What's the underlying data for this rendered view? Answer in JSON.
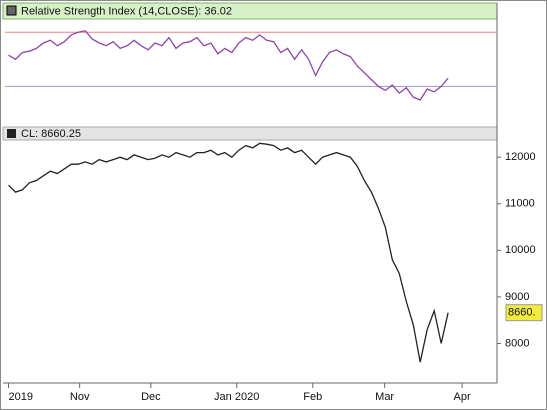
{
  "chart_data": [
    {
      "type": "line",
      "title": "Relative Strength Index (14,CLOSE): 36.02",
      "color": "#8e44ad",
      "values": [
        53,
        50,
        55,
        56,
        58,
        62,
        64,
        60,
        63,
        68,
        70,
        71,
        65,
        62,
        60,
        63,
        58,
        60,
        64,
        60,
        57,
        62,
        60,
        66,
        58,
        62,
        63,
        66,
        60,
        62,
        54,
        58,
        55,
        62,
        66,
        64,
        68,
        64,
        63,
        55,
        58,
        50,
        57,
        50,
        38,
        48,
        55,
        57,
        54,
        52,
        45,
        40,
        35,
        30,
        27,
        31,
        25,
        29,
        22,
        20,
        28,
        26,
        30,
        36.02
      ],
      "xlim": [
        -0.5,
        70
      ],
      "ylim": [
        0,
        79
      ],
      "hlines": [
        {
          "value": 70,
          "color": "#f08080"
        },
        {
          "value": 30,
          "color": "#9999cc"
        }
      ]
    },
    {
      "type": "line",
      "title": "CL: 8660.25",
      "color": "#222222",
      "values": [
        11400,
        11250,
        11300,
        11450,
        11500,
        11600,
        11700,
        11650,
        11750,
        11850,
        11850,
        11900,
        11850,
        11950,
        11900,
        11950,
        12000,
        11950,
        12050,
        12000,
        11950,
        11980,
        12050,
        12000,
        12100,
        12050,
        12000,
        12100,
        12100,
        12150,
        12050,
        12100,
        12000,
        12150,
        12250,
        12200,
        12300,
        12280,
        12250,
        12150,
        12200,
        12100,
        12150,
        12000,
        11850,
        12000,
        12050,
        12100,
        12050,
        12000,
        11800,
        11500,
        11250,
        10900,
        10500,
        9800,
        9500,
        8900,
        8400,
        7600,
        8300,
        8700,
        8000,
        8660.25
      ],
      "last_label": "8660.",
      "xlim": [
        -0.5,
        70
      ],
      "ylim": [
        7150,
        12370
      ],
      "yticks": [
        8000,
        9000,
        10000,
        11000,
        12000
      ],
      "xticks": [
        {
          "value": 0,
          "label": "2019"
        },
        {
          "value": 10.2,
          "label": "Nov"
        },
        {
          "value": 20.4,
          "label": "Dec"
        },
        {
          "value": 32.7,
          "label": "Jan 2020"
        },
        {
          "value": 43.6,
          "label": "Feb"
        },
        {
          "value": 53.9,
          "label": "Mar"
        },
        {
          "value": 65,
          "label": "Apr"
        }
      ]
    }
  ]
}
